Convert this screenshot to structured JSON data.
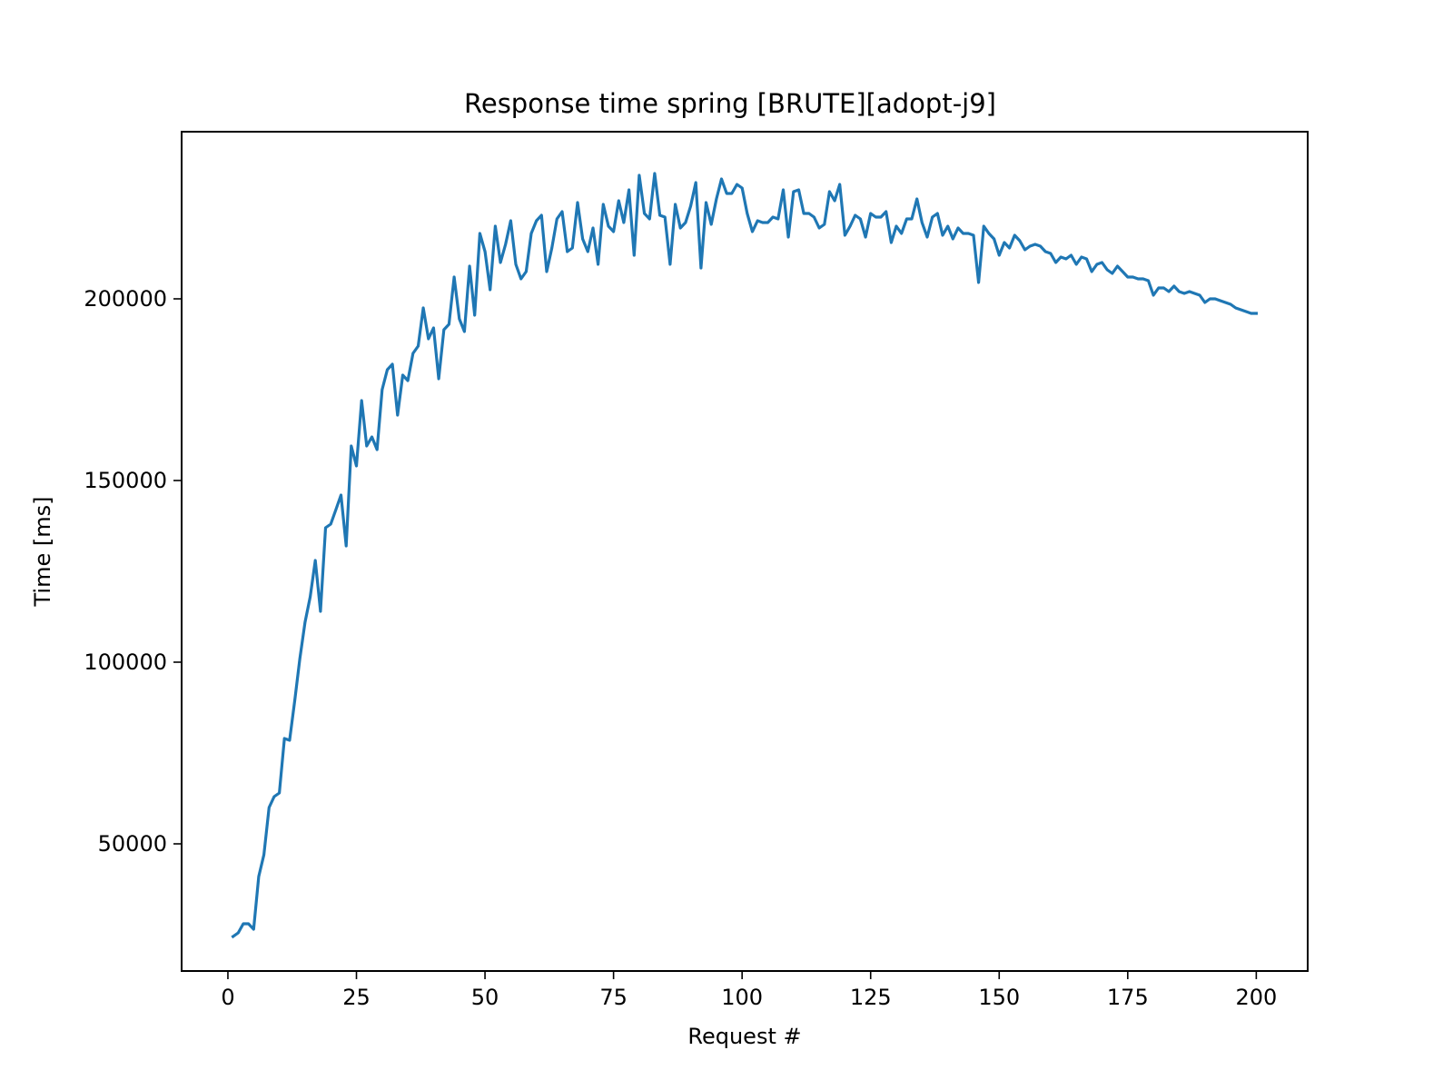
{
  "chart_data": {
    "type": "line",
    "title": "Response time spring [BRUTE][adopt-j9]",
    "xlabel": "Request #",
    "ylabel": "Time [ms]",
    "xlim": [
      -9,
      210
    ],
    "ylim": [
      15000,
      246000
    ],
    "xticks": [
      0,
      25,
      50,
      75,
      100,
      125,
      150,
      175,
      200
    ],
    "yticks": [
      50000,
      100000,
      150000,
      200000
    ],
    "grid": false,
    "legend": "none",
    "colors": {
      "series": "#1f77b4",
      "frame": "#000000",
      "background": "#ffffff"
    },
    "series": [
      {
        "x": [
          1,
          2,
          3,
          4,
          5,
          6,
          7,
          8,
          9,
          10,
          11,
          12,
          13,
          14,
          15,
          16,
          17,
          18,
          19,
          20,
          21,
          22,
          23,
          24,
          25,
          26,
          27,
          28,
          29,
          30,
          31,
          32,
          33,
          34,
          35,
          36,
          37,
          38,
          39,
          40,
          41,
          42,
          43,
          44,
          45,
          46,
          47,
          48,
          49,
          50,
          51,
          52,
          53,
          54,
          55,
          56,
          57,
          58,
          59,
          60,
          61,
          62,
          63,
          64,
          65,
          66,
          67,
          68,
          69,
          70,
          71,
          72,
          73,
          74,
          75,
          76,
          77,
          78,
          79,
          80,
          81,
          82,
          83,
          84,
          85,
          86,
          87,
          88,
          89,
          90,
          91,
          92,
          93,
          94,
          95,
          96,
          97,
          98,
          99,
          100,
          101,
          102,
          103,
          104,
          105,
          106,
          107,
          108,
          109,
          110,
          111,
          112,
          113,
          114,
          115,
          116,
          117,
          118,
          119,
          120,
          121,
          122,
          123,
          124,
          125,
          126,
          127,
          128,
          129,
          130,
          131,
          132,
          133,
          134,
          135,
          136,
          137,
          138,
          139,
          140,
          141,
          142,
          143,
          144,
          145,
          146,
          147,
          148,
          149,
          150,
          151,
          152,
          153,
          154,
          155,
          156,
          157,
          158,
          159,
          160,
          161,
          162,
          163,
          164,
          165,
          166,
          167,
          168,
          169,
          170,
          171,
          172,
          173,
          174,
          175,
          176,
          177,
          178,
          179,
          180,
          181,
          182,
          183,
          184,
          185,
          186,
          187,
          188,
          189,
          190,
          191,
          192,
          193,
          194,
          195,
          196,
          197,
          198,
          199,
          200
        ],
        "values": [
          24500,
          25500,
          28000,
          28000,
          26500,
          41000,
          47000,
          60000,
          63000,
          64000,
          79000,
          78500,
          89500,
          101000,
          111000,
          118000,
          128000,
          114000,
          137000,
          138000,
          142000,
          146000,
          132000,
          159500,
          154000,
          172000,
          159500,
          162000,
          158500,
          175000,
          180500,
          182000,
          168000,
          179000,
          177500,
          185000,
          187000,
          197500,
          189000,
          192000,
          178000,
          191500,
          193000,
          206000,
          194500,
          191000,
          209000,
          195500,
          218000,
          213000,
          202500,
          220000,
          210000,
          215000,
          221500,
          209500,
          205500,
          207500,
          218000,
          221500,
          223000,
          207500,
          214000,
          222000,
          224000,
          213000,
          214000,
          226500,
          216500,
          213000,
          219500,
          209500,
          226000,
          220000,
          218500,
          227000,
          221000,
          230000,
          212000,
          234000,
          223500,
          222000,
          234500,
          223000,
          222500,
          209500,
          226000,
          219500,
          221000,
          225500,
          232000,
          208500,
          226500,
          220500,
          227500,
          233000,
          229000,
          229000,
          231500,
          230500,
          223500,
          218500,
          221500,
          221000,
          221000,
          222500,
          222000,
          230000,
          217000,
          229500,
          230000,
          223500,
          223500,
          222500,
          219500,
          220500,
          229500,
          227000,
          231500,
          217500,
          220000,
          223000,
          222000,
          217000,
          223500,
          222500,
          222500,
          224000,
          215500,
          220000,
          218000,
          222000,
          222000,
          227500,
          221000,
          217000,
          222500,
          223500,
          217500,
          220000,
          216500,
          219500,
          218000,
          218000,
          217500,
          204500,
          220000,
          218000,
          216500,
          212000,
          215500,
          214000,
          217500,
          216000,
          213500,
          214500,
          215000,
          214500,
          213000,
          212500,
          210000,
          211500,
          211000,
          212000,
          209500,
          211500,
          211000,
          207500,
          209500,
          210000,
          208000,
          207000,
          209000,
          207500,
          206000,
          206000,
          205500,
          205500,
          205000,
          201000,
          203000,
          203000,
          202000,
          203500,
          202000,
          201500,
          202000,
          201500,
          201000,
          199000,
          200000,
          200000,
          199500,
          199000,
          198500,
          197500,
          197000,
          196500,
          196000,
          196000
        ]
      }
    ]
  }
}
